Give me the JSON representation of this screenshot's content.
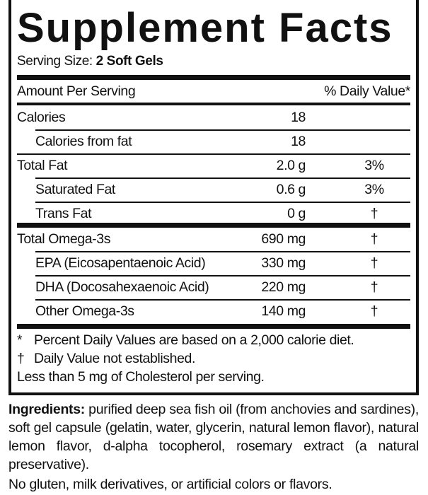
{
  "title": "Supplement Facts",
  "serving": {
    "label": "Serving Size:",
    "value": "2 Soft Gels"
  },
  "header": {
    "amount": "Amount Per Serving",
    "dv": "% Daily Value*"
  },
  "rows": [
    {
      "label": "Calories",
      "amount": "18",
      "dv": "",
      "indent": false
    },
    {
      "label": "Calories from fat",
      "amount": "18",
      "dv": "",
      "indent": true
    },
    {
      "label": "Total Fat",
      "amount": "2.0 g",
      "dv": "3%",
      "indent": false
    },
    {
      "label": "Saturated Fat",
      "amount": "0.6 g",
      "dv": "3%",
      "indent": true
    },
    {
      "label": "Trans Fat",
      "amount": "0 g",
      "dv": "†",
      "indent": true
    },
    {
      "label": "Total Omega-3s",
      "amount": "690 mg",
      "dv": "†",
      "indent": false
    },
    {
      "label": "EPA (Eicosapentaenoic Acid)",
      "amount": "330 mg",
      "dv": "†",
      "indent": true
    },
    {
      "label": "DHA (Docosahexaenoic Acid)",
      "amount": "220 mg",
      "dv": "†",
      "indent": true
    },
    {
      "label": "Other Omega-3s",
      "amount": "140 mg",
      "dv": "†",
      "indent": true
    }
  ],
  "footnotes": [
    {
      "symbol": "*",
      "text": "Percent Daily Values are based on a 2,000 calorie diet."
    },
    {
      "symbol": "†",
      "text": "Daily Value not established."
    },
    {
      "symbol": "",
      "text": "Less than 5 mg of Cholesterol per serving."
    }
  ],
  "ingredients": {
    "label": "Ingredients:",
    "text": " purified deep sea fish oil (from anchovies and sardines), soft gel capsule (gelatin, water, glycerin, natural lemon flavor), natural lemon flavor, d-alpha tocopherol, rosemary extract (a natural preservative)."
  },
  "free_from": "No gluten, milk derivatives, or artificial colors or flavors."
}
